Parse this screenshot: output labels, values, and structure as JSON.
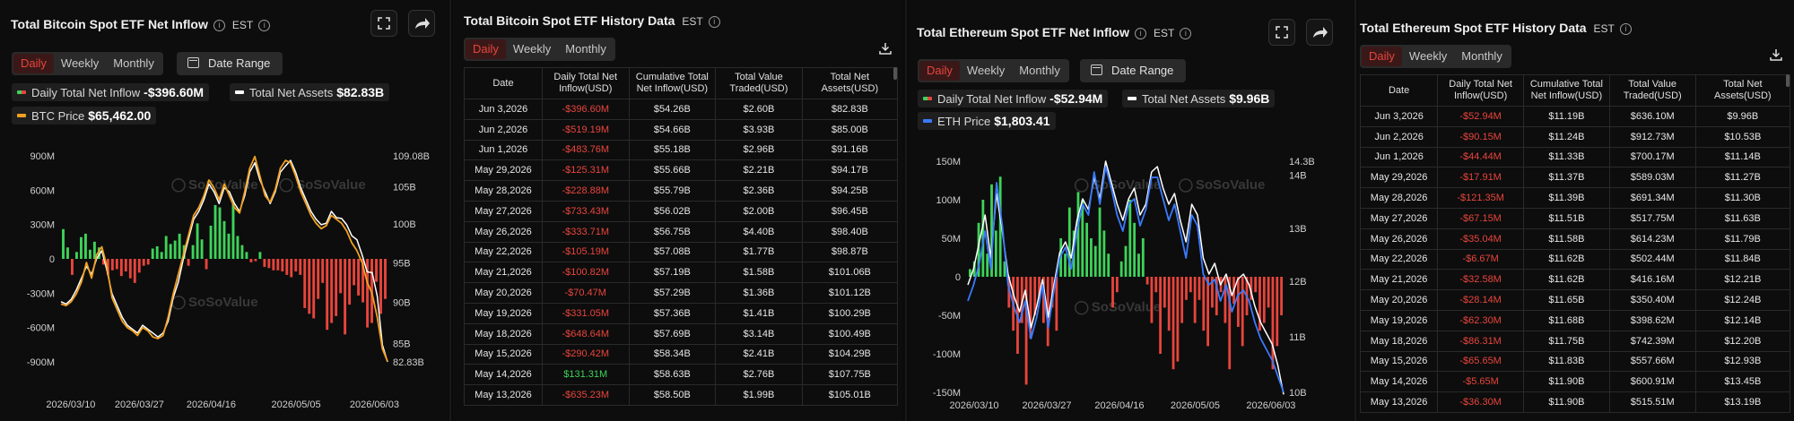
{
  "btc_chart": {
    "title": "Total Bitcoin Spot ETF Net Inflow",
    "timezone": "EST",
    "tabs": [
      "Daily",
      "Weekly",
      "Monthly"
    ],
    "active_tab": "Daily",
    "date_range_label": "Date Range",
    "legend": {
      "net_inflow_label": "Daily Total Net Inflow",
      "net_inflow_value": "-$396.60M",
      "net_assets_label": "Total Net Assets",
      "net_assets_value": "$82.83B",
      "price_label": "BTC Price",
      "price_value": "$65,462.00"
    },
    "watermark": "SoSoValue",
    "colors": {
      "positive": "#3ed35a",
      "negative": "#e8453c",
      "price": "#f0a020",
      "assets": "#ffffff"
    }
  },
  "btc_table": {
    "title": "Total Bitcoin Spot ETF History Data",
    "timezone": "EST",
    "tabs": [
      "Daily",
      "Weekly",
      "Monthly"
    ],
    "active_tab": "Daily",
    "headers": [
      "Date",
      "Daily Total Net Inflow(USD)",
      "Cumulative Total Net Inflow(USD)",
      "Total Value Traded(USD)",
      "Total Net Assets(USD)"
    ],
    "rows": [
      [
        "Jun 3,2026",
        "-$396.60M",
        "$54.26B",
        "$2.60B",
        "$82.83B"
      ],
      [
        "Jun 2,2026",
        "-$519.19M",
        "$54.66B",
        "$3.93B",
        "$85.00B"
      ],
      [
        "Jun 1,2026",
        "-$483.76M",
        "$55.18B",
        "$2.96B",
        "$91.16B"
      ],
      [
        "May 29,2026",
        "-$125.31M",
        "$55.66B",
        "$2.21B",
        "$94.17B"
      ],
      [
        "May 28,2026",
        "-$228.88M",
        "$55.79B",
        "$2.36B",
        "$94.25B"
      ],
      [
        "May 27,2026",
        "-$733.43M",
        "$56.02B",
        "$2.00B",
        "$96.45B"
      ],
      [
        "May 26,2026",
        "-$333.71M",
        "$56.75B",
        "$4.40B",
        "$98.40B"
      ],
      [
        "May 22,2026",
        "-$105.19M",
        "$57.08B",
        "$1.77B",
        "$98.87B"
      ],
      [
        "May 21,2026",
        "-$100.82M",
        "$57.19B",
        "$1.58B",
        "$101.06B"
      ],
      [
        "May 20,2026",
        "-$70.47M",
        "$57.29B",
        "$1.36B",
        "$101.12B"
      ],
      [
        "May 19,2026",
        "-$331.05M",
        "$57.36B",
        "$1.41B",
        "$100.29B"
      ],
      [
        "May 18,2026",
        "-$648.64M",
        "$57.69B",
        "$3.14B",
        "$100.49B"
      ],
      [
        "May 15,2026",
        "-$290.42M",
        "$58.34B",
        "$2.41B",
        "$104.29B"
      ],
      [
        "May 14,2026",
        "$131.31M",
        "$58.63B",
        "$2.76B",
        "$107.75B"
      ],
      [
        "May 13,2026",
        "-$635.23M",
        "$58.50B",
        "$1.99B",
        "$105.01B"
      ]
    ]
  },
  "eth_chart": {
    "title": "Total Ethereum Spot ETF Net Inflow",
    "timezone": "EST",
    "tabs": [
      "Daily",
      "Weekly",
      "Monthly"
    ],
    "active_tab": "Daily",
    "date_range_label": "Date Range",
    "legend": {
      "net_inflow_label": "Daily Total Net Inflow",
      "net_inflow_value": "-$52.94M",
      "net_assets_label": "Total Net Assets",
      "net_assets_value": "$9.96B",
      "price_label": "ETH Price",
      "price_value": "$1,803.41"
    },
    "watermark": "SoSoValue",
    "colors": {
      "positive": "#3ed35a",
      "negative": "#e8453c",
      "price": "#3a7bff",
      "assets": "#ffffff"
    }
  },
  "eth_table": {
    "title": "Total Ethereum Spot ETF History Data",
    "timezone": "EST",
    "tabs": [
      "Daily",
      "Weekly",
      "Monthly"
    ],
    "active_tab": "Daily",
    "headers": [
      "Date",
      "Daily Total Net Inflow(USD)",
      "Cumulative Total Net Inflow(USD)",
      "Total Value Traded(USD)",
      "Total Net Assets(USD)"
    ],
    "rows": [
      [
        "Jun 3,2026",
        "-$52.94M",
        "$11.19B",
        "$636.10M",
        "$9.96B"
      ],
      [
        "Jun 2,2026",
        "-$90.15M",
        "$11.24B",
        "$912.73M",
        "$10.53B"
      ],
      [
        "Jun 1,2026",
        "-$44.44M",
        "$11.33B",
        "$700.17M",
        "$11.14B"
      ],
      [
        "May 29,2026",
        "-$17.91M",
        "$11.37B",
        "$589.03M",
        "$11.27B"
      ],
      [
        "May 28,2026",
        "-$121.35M",
        "$11.39B",
        "$691.34M",
        "$11.30B"
      ],
      [
        "May 27,2026",
        "-$67.15M",
        "$11.51B",
        "$517.75M",
        "$11.63B"
      ],
      [
        "May 26,2026",
        "-$35.04M",
        "$11.58B",
        "$614.23M",
        "$11.79B"
      ],
      [
        "May 22,2026",
        "-$6.67M",
        "$11.62B",
        "$502.44M",
        "$11.84B"
      ],
      [
        "May 21,2026",
        "-$32.58M",
        "$11.62B",
        "$416.16M",
        "$12.21B"
      ],
      [
        "May 20,2026",
        "-$28.14M",
        "$11.65B",
        "$350.40M",
        "$12.24B"
      ],
      [
        "May 19,2026",
        "-$62.30M",
        "$11.68B",
        "$398.62M",
        "$12.14B"
      ],
      [
        "May 18,2026",
        "-$86.31M",
        "$11.75B",
        "$742.39M",
        "$12.20B"
      ],
      [
        "May 15,2026",
        "-$65.65M",
        "$11.83B",
        "$557.66M",
        "$12.93B"
      ],
      [
        "May 14,2026",
        "-$5.65M",
        "$11.90B",
        "$600.91M",
        "$13.45B"
      ],
      [
        "May 13,2026",
        "-$36.30M",
        "$11.90B",
        "$515.51M",
        "$13.19B"
      ]
    ]
  },
  "chart_data": [
    {
      "type": "bar",
      "title": "Total Bitcoin Spot ETF Net Inflow",
      "x_ticks": [
        "2026/03/10",
        "2026/03/27",
        "2026/04/16",
        "2026/05/05",
        "2026/06/03"
      ],
      "y_left_ticks": [
        "900M",
        "600M",
        "300M",
        "0",
        "-300M",
        "-600M",
        "-900M"
      ],
      "y_left_range": [
        -900,
        900
      ],
      "y_right_ticks": [
        "109.08B",
        "105B",
        "100B",
        "95B",
        "90B",
        "85B",
        "82.83B"
      ],
      "y_right_range": [
        82.83,
        109.08
      ],
      "series": [
        {
          "name": "Daily Total Net Inflow",
          "kind": "bar",
          "values": [
            260,
            100,
            -140,
            60,
            190,
            220,
            80,
            150,
            100,
            -50,
            -140,
            -100,
            -90,
            -150,
            -110,
            -170,
            -210,
            -120,
            -60,
            -50,
            90,
            110,
            60,
            200,
            130,
            160,
            220,
            120,
            -60,
            120,
            310,
            170,
            -90,
            290,
            470,
            450,
            330,
            220,
            480,
            200,
            120,
            60,
            -30,
            -20,
            60,
            -70,
            -80,
            -100,
            -100,
            -110,
            -140,
            -160,
            -110,
            -140,
            -430,
            -480,
            -520,
            -350,
            -210,
            -620,
            -560,
            -500,
            -300,
            -660,
            -400,
            -230,
            -320,
            -380,
            -600,
            -560,
            -200,
            -480,
            -350
          ]
        },
        {
          "name": "Total Net Assets",
          "kind": "line",
          "values": [
            90.5,
            90.2,
            90.8,
            92.0,
            93.5,
            95.0,
            94.0,
            96.0,
            97.0,
            94.5,
            91.5,
            90.0,
            88.5,
            87.5,
            87.0,
            86.5,
            87.5,
            87.0,
            86.5,
            86.0,
            86.5,
            88.0,
            91.0,
            93.0,
            96.0,
            98.5,
            101.0,
            102.0,
            103.5,
            105.5,
            104.5,
            103.0,
            105.0,
            104.5,
            103.0,
            102.0,
            104.0,
            107.0,
            108.2,
            106.0,
            104.5,
            103.0,
            104.5,
            107.0,
            107.8,
            108.5,
            107.0,
            105.0,
            103.5,
            102.0,
            101.0,
            100.3,
            100.5,
            102.0,
            101.2,
            101.1,
            100.3,
            98.9,
            98.4,
            96.5,
            94.3,
            94.2,
            91.2,
            85.0,
            82.83
          ]
        },
        {
          "name": "BTC Price",
          "kind": "line",
          "values": [
            90.2,
            90.0,
            90.5,
            91.5,
            93.0,
            95.5,
            93.5,
            96.5,
            97.5,
            95.0,
            91.0,
            89.5,
            88.0,
            87.2,
            86.8,
            86.2,
            87.2,
            86.8,
            86.0,
            85.8,
            86.2,
            88.5,
            91.5,
            94.0,
            96.5,
            99.0,
            101.5,
            102.5,
            104.0,
            106.0,
            105.0,
            103.5,
            105.5,
            104.0,
            102.5,
            101.8,
            104.5,
            107.5,
            109.0,
            106.5,
            104.0,
            103.2,
            104.8,
            107.5,
            108.5,
            108.2,
            106.5,
            104.5,
            103.0,
            101.5,
            100.5,
            99.8,
            100.2,
            101.5,
            101.0,
            100.5,
            99.5,
            98.0,
            97.0,
            95.5,
            93.0,
            91.5,
            88.5,
            84.5,
            82.9
          ]
        }
      ]
    },
    {
      "type": "bar",
      "title": "Total Ethereum Spot ETF Net Inflow",
      "x_ticks": [
        "2026/03/10",
        "2026/03/27",
        "2026/04/16",
        "2026/05/05",
        "2026/06/03"
      ],
      "y_left_ticks": [
        "150M",
        "100M",
        "50M",
        "0",
        "-50M",
        "-100M",
        "-150M"
      ],
      "y_left_range": [
        -150,
        150
      ],
      "y_right_ticks": [
        "14.3B",
        "14B",
        "13B",
        "12B",
        "11B",
        "10B"
      ],
      "y_right_range": [
        10,
        14.3
      ],
      "series": [
        {
          "name": "Daily Total Net Inflow",
          "kind": "bar",
          "values": [
            10,
            20,
            70,
            100,
            30,
            120,
            60,
            130,
            20,
            -40,
            -70,
            -100,
            -60,
            -140,
            -80,
            -50,
            -30,
            -60,
            -90,
            -40,
            -70,
            50,
            30,
            90,
            60,
            110,
            100,
            70,
            50,
            40,
            90,
            60,
            30,
            -40,
            -20,
            20,
            40,
            100,
            70,
            30,
            50,
            -10,
            -60,
            -20,
            -100,
            -40,
            -70,
            -120,
            -110,
            -60,
            -30,
            -20,
            -60,
            -30,
            -70,
            -90,
            -40,
            -50,
            -20,
            -60,
            -120,
            -35,
            -65,
            -90,
            -50,
            -30,
            -20,
            -70,
            -60,
            -40,
            -120,
            -90,
            -50
          ]
        },
        {
          "name": "Total Net Assets",
          "kind": "line",
          "values": [
            12.0,
            12.3,
            12.8,
            13.3,
            12.5,
            13.7,
            13.0,
            12.2,
            11.8,
            11.5,
            11.9,
            11.2,
            11.6,
            12.1,
            11.4,
            12.0,
            12.6,
            12.8,
            12.5,
            13.2,
            13.6,
            13.4,
            14.0,
            13.6,
            14.3,
            13.9,
            13.5,
            13.2,
            13.6,
            13.8,
            13.3,
            13.5,
            14.1,
            14.2,
            13.8,
            13.5,
            13.7,
            13.2,
            12.8,
            13.5,
            13.3,
            12.5,
            12.2,
            12.4,
            12.0,
            12.2,
            11.8,
            12.1,
            12.2,
            12.0,
            11.6,
            11.3,
            11.1,
            10.9,
            10.5,
            9.96
          ]
        },
        {
          "name": "ETH Price",
          "kind": "line",
          "values": [
            11.7,
            12.0,
            12.4,
            13.0,
            12.3,
            13.9,
            13.1,
            12.0,
            11.6,
            11.3,
            11.7,
            11.0,
            11.4,
            12.0,
            11.2,
            11.9,
            12.5,
            12.7,
            12.3,
            13.0,
            13.5,
            13.3,
            14.1,
            13.5,
            14.2,
            13.8,
            13.3,
            13.0,
            13.5,
            13.6,
            13.1,
            13.4,
            14.0,
            14.0,
            13.6,
            13.2,
            13.5,
            13.0,
            12.5,
            13.3,
            13.1,
            12.2,
            12.0,
            12.1,
            11.7,
            12.0,
            11.5,
            11.8,
            11.9,
            11.7,
            11.3,
            11.0,
            10.8,
            10.6,
            10.3,
            10.0
          ]
        }
      ]
    }
  ]
}
